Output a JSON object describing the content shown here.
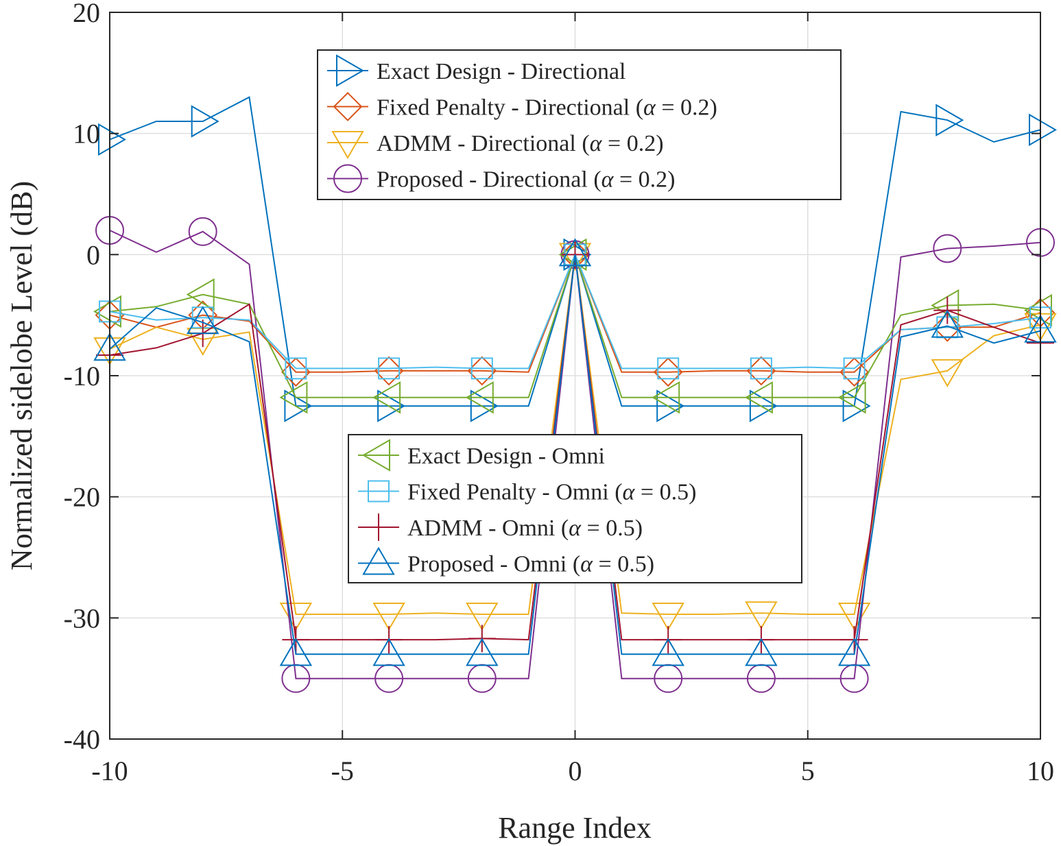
{
  "chart_data": {
    "type": "line",
    "title": "",
    "xlabel": "Range Index",
    "ylabel": "Normalized sidelobe Level (dB)",
    "xlim": [
      -10,
      10
    ],
    "ylim": [
      -40,
      20
    ],
    "xticks": [
      -10,
      -5,
      0,
      5,
      10
    ],
    "yticks": [
      20,
      10,
      0,
      -10,
      -20,
      -30,
      -40
    ],
    "xtick_labels": [
      "-10",
      "-5",
      "0",
      "5",
      "10"
    ],
    "ytick_labels": [
      "20",
      "10",
      "0",
      "-10",
      "-20",
      "-30",
      "-40"
    ],
    "grid": true,
    "x": [
      -10,
      -9,
      -8,
      -7,
      -6,
      -5,
      -4,
      -3,
      -2,
      -1,
      0,
      1,
      2,
      3,
      4,
      5,
      6,
      7,
      8,
      9,
      10
    ],
    "series": [
      {
        "name": "Exact Design - Directional",
        "group": "directional",
        "color": "#0072BD",
        "marker": "triangle-right",
        "values": [
          9.5,
          11,
          11,
          13,
          -12.5,
          -12.5,
          -12.5,
          -12.5,
          -12.5,
          -12.5,
          0,
          -12.5,
          -12.5,
          -12.5,
          -12.5,
          -12.5,
          -12.5,
          11.8,
          11.1,
          9.3,
          10.3
        ]
      },
      {
        "name": "Fixed Penalty - Directional",
        "group": "directional",
        "color": "#D95319",
        "marker": "diamond",
        "values": [
          -5,
          -6,
          -5,
          -5.5,
          -9.7,
          -9.7,
          -9.6,
          -9.6,
          -9.6,
          -9.7,
          0,
          -9.7,
          -9.7,
          -9.6,
          -9.6,
          -9.7,
          -9.7,
          -6.2,
          -6,
          -6,
          -4.8
        ]
      },
      {
        "name": "ADMM - Directional",
        "group": "directional",
        "color": "#EDB120",
        "marker": "triangle-down",
        "values": [
          -7.8,
          -6,
          -7,
          -6.4,
          -29.7,
          -29.7,
          -29.7,
          -29.6,
          -29.7,
          -29.7,
          0,
          -29.6,
          -29.7,
          -29.7,
          -29.6,
          -29.7,
          -29.7,
          -10.3,
          -9.6,
          -6.7,
          -5.8
        ]
      },
      {
        "name": "Proposed - Directional",
        "group": "directional",
        "color": "#7E2F8E",
        "marker": "circle",
        "values": [
          2,
          0.2,
          1.9,
          -0.8,
          -35,
          -35,
          -35,
          -35,
          -35,
          -35,
          0,
          -35,
          -35,
          -35,
          -35,
          -35,
          -35,
          -0.2,
          0.5,
          0.7,
          1
        ]
      },
      {
        "name": "Exact Design - Omni",
        "group": "omni",
        "color": "#77AC30",
        "marker": "triangle-left",
        "values": [
          -4.7,
          -4.3,
          -3.3,
          -4.1,
          -11.8,
          -11.8,
          -11.8,
          -11.8,
          -11.8,
          -11.8,
          0,
          -11.8,
          -11.8,
          -11.8,
          -11.8,
          -11.8,
          -11.8,
          -5,
          -4.2,
          -4.1,
          -4.6
        ]
      },
      {
        "name": "Fixed Penalty - Omni",
        "group": "omni",
        "color": "#4DBEEE",
        "marker": "square",
        "values": [
          -4.7,
          -5.4,
          -5.2,
          -5.4,
          -9.4,
          -9.4,
          -9.4,
          -9.3,
          -9.4,
          -9.4,
          0,
          -9.4,
          -9.4,
          -9.4,
          -9.4,
          -9.3,
          -9.4,
          -6.2,
          -6,
          -5.7,
          -5.2
        ]
      },
      {
        "name": "ADMM - Omni",
        "group": "omni",
        "color": "#A2142F",
        "marker": "plus",
        "values": [
          -8.3,
          -7.7,
          -6.5,
          -4.1,
          -31.8,
          -31.8,
          -31.8,
          -31.8,
          -31.7,
          -31.8,
          0,
          -31.8,
          -31.8,
          -31.8,
          -31.8,
          -31.8,
          -31.8,
          -5.8,
          -4.6,
          -6,
          -7.3
        ]
      },
      {
        "name": "Proposed - Omni",
        "group": "omni",
        "color": "#0072BD",
        "marker": "triangle-up",
        "values": [
          -7.8,
          -4.4,
          -5.6,
          -7.2,
          -33,
          -33,
          -33,
          -33,
          -33,
          -33,
          0,
          -33,
          -33,
          -33,
          -33,
          -33,
          -33,
          -6.8,
          -5.9,
          -7.3,
          -6.3
        ]
      }
    ],
    "legends": [
      {
        "name": "directional",
        "placement": "top-center",
        "entries": [
          "Exact Design - Directional",
          "Fixed Penalty - Directional",
          "ADMM - Directional",
          "Proposed - Directional"
        ],
        "suffixes": [
          "",
          "0.2",
          "0.2",
          "0.2"
        ]
      },
      {
        "name": "omni",
        "placement": "center",
        "entries": [
          "Exact Design - Omni",
          "Fixed Penalty - Omni",
          "ADMM - Omni",
          "Proposed - Omni"
        ],
        "suffixes": [
          "",
          "0.5",
          "0.5",
          "0.5"
        ]
      }
    ],
    "alpha_symbol": "α",
    "equals_sign": "="
  }
}
